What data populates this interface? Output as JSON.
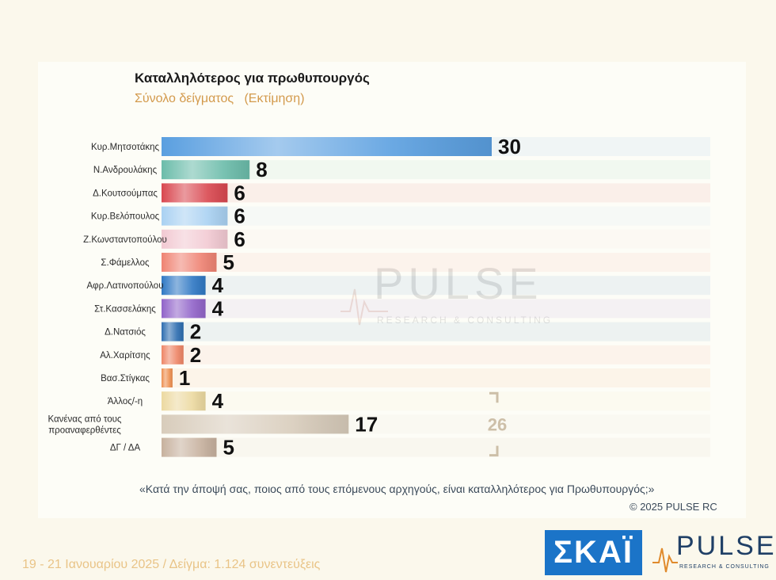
{
  "chart_data": {
    "type": "bar",
    "orientation": "horizontal",
    "title": "Καταλληλότερος για πρωθυπουργός",
    "subtitle": "Σύνολο δείγματος   (Εκτίμηση)",
    "categories": [
      "Κυρ.Μητσοτάκης",
      "Ν.Ανδρουλάκης",
      "Δ.Κουτσούμπας",
      "Κυρ.Βελόπουλος",
      "Ζ.Κωνσταντοπούλου",
      "Σ.Φάμελλος",
      "Αφρ.Λατινοπούλου",
      "Στ.Κασσελάκης",
      "Δ.Νατσιός",
      "Αλ.Χαρίτσης",
      "Βασ.Στίγκας",
      "Άλλος/-η",
      "Κανένας από τους προαναφερθέντες",
      "ΔΓ / ΔΑ"
    ],
    "values": [
      30,
      8,
      6,
      6,
      6,
      5,
      4,
      4,
      2,
      2,
      1,
      4,
      17,
      5
    ],
    "colors": [
      "#5a9fe0",
      "#6bbcaa",
      "#d9474f",
      "#a9d1f2",
      "#f2c9d2",
      "#ef8373",
      "#2f78c4",
      "#9163c9",
      "#2d6db0",
      "#ee8566",
      "#ee8f50",
      "#ecd9a0",
      "#d8ccbb",
      "#c7b19e"
    ],
    "xlim": [
      0,
      50
    ],
    "bracket_total": "26",
    "grid": false,
    "legend": "none"
  },
  "watermark": {
    "word": "PULSE",
    "tagline": "RESEARCH & CONSULTING"
  },
  "question": "«Κατά την άποψή σας, ποιος από τους επόμενους αρχηγούς, είναι καταλληλότερος για Πρωθυπουργός;»",
  "copyright": "©  2025  PULSE RC",
  "footer": "19 - 21 Ιανουαρίου 2025  /  Δείγμα:  1.124 συνεντεύξεις",
  "logos": {
    "skai": "ΣΚΑΪ",
    "pulse": "PULSE",
    "pulse_tagline": "RESEARCH & CONSULTING"
  }
}
